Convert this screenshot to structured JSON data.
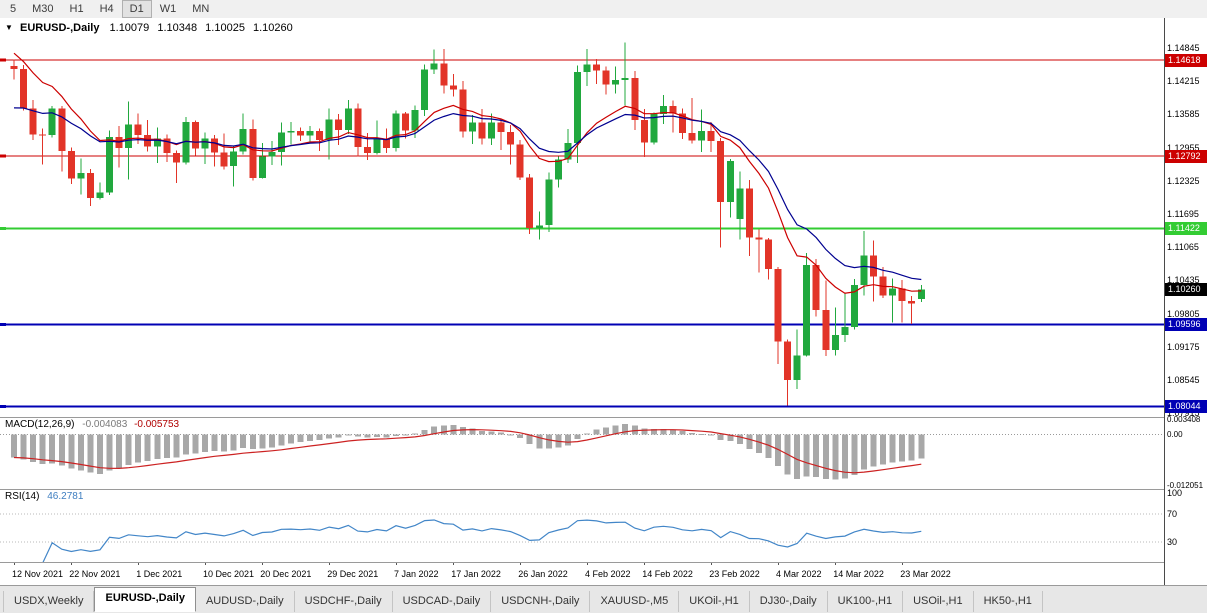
{
  "toolbar": {
    "timeframes": [
      "5",
      "M30",
      "H1",
      "H4",
      "D1",
      "W1",
      "MN"
    ],
    "active_timeframe": "D1"
  },
  "chart_header": {
    "menu_icon": "▼",
    "symbol_label": "EURUSD-,Daily",
    "open": "1.10079",
    "high": "1.10348",
    "low": "1.10025",
    "close": "1.10260"
  },
  "chart_data": {
    "type": "candlestick",
    "symbol": "EURUSD",
    "timeframe": "Daily",
    "colors": {
      "up": "#21a83e",
      "down": "#e23428",
      "macd_hist": "#a8a8a8",
      "macd_signal": "#cc2222",
      "rsi": "#4286c8"
    },
    "price_axis": {
      "gridmarks": [
        "1.14845",
        "1.14215",
        "1.13585",
        "1.12955",
        "1.12325",
        "1.11695",
        "1.11065",
        "1.10435",
        "1.09805",
        "1.09175",
        "1.08545",
        "1.07915"
      ],
      "badges": [
        {
          "price": 1.14618,
          "label": "1.14618",
          "color": "#cc0000"
        },
        {
          "price": 1.12792,
          "label": "1.12792",
          "color": "#cc0000"
        },
        {
          "price": 1.11422,
          "label": "1.11422",
          "color": "#33cc33"
        },
        {
          "price": 1.1026,
          "label": "1.10260",
          "color": "#000000"
        },
        {
          "price": 1.09596,
          "label": "1.09596",
          "color": "#0000b4"
        },
        {
          "price": 1.08044,
          "label": "1.08044",
          "color": "#0000b4"
        }
      ]
    },
    "hlines": [
      {
        "price": 1.14618,
        "color": "#cc0000",
        "width": 1
      },
      {
        "price": 1.12792,
        "color": "#cc0000",
        "width": 1
      },
      {
        "price": 1.11422,
        "color": "#33cc33",
        "width": 2
      },
      {
        "price": 1.09596,
        "color": "#0000b4",
        "width": 2
      },
      {
        "price": 1.08044,
        "color": "#0000b4",
        "width": 2
      }
    ],
    "moving_averages": [
      {
        "period": 12,
        "seed": 1.148,
        "color": "#cc0000"
      },
      {
        "period": 18,
        "seed": 1.1362,
        "color": "#000090"
      }
    ],
    "candles": {
      "o": [
        1.145,
        1.1445,
        1.137,
        1.132,
        1.1319,
        1.137,
        1.1289,
        1.1237,
        1.1247,
        1.12,
        1.121,
        1.1316,
        1.1295,
        1.1339,
        1.1319,
        1.1298,
        1.1313,
        1.1285,
        1.1267,
        1.1344,
        1.1294,
        1.1313,
        1.1286,
        1.126,
        1.1288,
        1.1331,
        1.1238,
        1.1279,
        1.1287,
        1.1324,
        1.1327,
        1.1318,
        1.1327,
        1.131,
        1.1349,
        1.1329,
        1.137,
        1.1297,
        1.1285,
        1.1313,
        1.1295,
        1.136,
        1.1328,
        1.1367,
        1.1444,
        1.1455,
        1.1413,
        1.1406,
        1.1326,
        1.1343,
        1.1313,
        1.1343,
        1.1325,
        1.1301,
        1.1239,
        1.1143,
        1.1148,
        1.1235,
        1.1273,
        1.1304,
        1.1439,
        1.1453,
        1.1442,
        1.1415,
        1.1424,
        1.1428,
        1.1348,
        1.1305,
        1.1359,
        1.1374,
        1.136,
        1.1323,
        1.1309,
        1.1327,
        1.1308,
        1.1192,
        1.116,
        1.1218,
        1.1125,
        1.1121,
        1.1065,
        1.0927,
        1.0854,
        1.0901,
        1.1073,
        1.0987,
        1.0911,
        1.094,
        1.0955,
        1.1035,
        1.1091,
        1.1051,
        1.1015,
        1.1028,
        1.1004,
        1.10079
      ],
      "h": [
        1.1463,
        1.1452,
        1.1386,
        1.1332,
        1.1374,
        1.1374,
        1.1296,
        1.1275,
        1.1255,
        1.1229,
        1.1328,
        1.1336,
        1.1383,
        1.136,
        1.1348,
        1.1334,
        1.132,
        1.129,
        1.1354,
        1.1347,
        1.1324,
        1.1319,
        1.1322,
        1.1298,
        1.136,
        1.1349,
        1.1304,
        1.1308,
        1.1343,
        1.1344,
        1.1334,
        1.1336,
        1.1332,
        1.137,
        1.1359,
        1.1386,
        1.1379,
        1.1323,
        1.1347,
        1.1332,
        1.1366,
        1.1363,
        1.1375,
        1.1453,
        1.1482,
        1.1483,
        1.1435,
        1.1422,
        1.1357,
        1.1369,
        1.136,
        1.1349,
        1.1338,
        1.131,
        1.1245,
        1.1174,
        1.1248,
        1.1279,
        1.1331,
        1.1451,
        1.1483,
        1.1464,
        1.1449,
        1.1449,
        1.1495,
        1.1441,
        1.1369,
        1.1362,
        1.1395,
        1.1385,
        1.137,
        1.139,
        1.1368,
        1.1344,
        1.1314,
        1.1274,
        1.125,
        1.1234,
        1.114,
        1.1124,
        1.1069,
        1.0931,
        1.095,
        1.1095,
        1.1084,
        1.1043,
        1.0992,
        1.102,
        1.1046,
        1.1137,
        1.1119,
        1.1069,
        1.1047,
        1.1044,
        1.1014,
        1.10348
      ],
      "l": [
        1.1425,
        1.1366,
        1.131,
        1.1263,
        1.1315,
        1.125,
        1.1226,
        1.1206,
        1.1185,
        1.1197,
        1.1205,
        1.1258,
        1.1235,
        1.1302,
        1.1288,
        1.1266,
        1.1268,
        1.1228,
        1.1263,
        1.128,
        1.1264,
        1.126,
        1.1254,
        1.1222,
        1.1282,
        1.1233,
        1.1237,
        1.1262,
        1.1261,
        1.1301,
        1.1308,
        1.1305,
        1.1289,
        1.1273,
        1.13,
        1.1321,
        1.1279,
        1.1272,
        1.1282,
        1.1285,
        1.1288,
        1.1313,
        1.1314,
        1.1355,
        1.1435,
        1.1398,
        1.1392,
        1.1315,
        1.1302,
        1.1301,
        1.13,
        1.1291,
        1.1263,
        1.1234,
        1.1131,
        1.1121,
        1.1135,
        1.122,
        1.1266,
        1.1266,
        1.1412,
        1.1416,
        1.1396,
        1.1398,
        1.1375,
        1.1329,
        1.1278,
        1.1301,
        1.134,
        1.1324,
        1.1312,
        1.1303,
        1.1287,
        1.1287,
        1.1106,
        1.1163,
        1.1121,
        1.109,
        1.1058,
        1.1045,
        1.0885,
        1.0806,
        1.0837,
        1.0899,
        1.0975,
        1.09,
        1.0901,
        1.0926,
        1.095,
        1.1015,
        1.1003,
        1.101,
        1.0963,
        1.0963,
        1.0961,
        1.10025
      ],
      "c": [
        1.1445,
        1.137,
        1.132,
        1.1319,
        1.137,
        1.1289,
        1.1237,
        1.1247,
        1.12,
        1.121,
        1.1316,
        1.1295,
        1.1339,
        1.1319,
        1.1298,
        1.1313,
        1.1285,
        1.1267,
        1.1344,
        1.1294,
        1.1313,
        1.1286,
        1.126,
        1.1288,
        1.1331,
        1.1238,
        1.1279,
        1.1287,
        1.1324,
        1.1327,
        1.1318,
        1.1327,
        1.131,
        1.1349,
        1.1329,
        1.137,
        1.1297,
        1.1285,
        1.1313,
        1.1295,
        1.136,
        1.1328,
        1.1367,
        1.1444,
        1.1455,
        1.1413,
        1.1406,
        1.1326,
        1.1343,
        1.1313,
        1.1343,
        1.1325,
        1.1301,
        1.1239,
        1.1143,
        1.1148,
        1.1235,
        1.1273,
        1.1304,
        1.1439,
        1.1453,
        1.1442,
        1.1415,
        1.1424,
        1.1428,
        1.1348,
        1.1305,
        1.1359,
        1.1374,
        1.136,
        1.1323,
        1.1309,
        1.1327,
        1.1308,
        1.1192,
        1.127,
        1.1218,
        1.1125,
        1.1121,
        1.1065,
        1.0927,
        1.0854,
        1.0901,
        1.1073,
        1.0987,
        1.0911,
        1.094,
        1.0955,
        1.1035,
        1.1091,
        1.1051,
        1.1015,
        1.1028,
        1.1004,
        1.0999,
        1.1026
      ]
    },
    "x_ticks": [
      {
        "label": "12 Nov 2021",
        "index": 0
      },
      {
        "label": "22 Nov 2021",
        "index": 6
      },
      {
        "label": "1 Dec 2021",
        "index": 13
      },
      {
        "label": "10 Dec 2021",
        "index": 20
      },
      {
        "label": "20 Dec 2021",
        "index": 26
      },
      {
        "label": "29 Dec 2021",
        "index": 33
      },
      {
        "label": "7 Jan 2022",
        "index": 40
      },
      {
        "label": "17 Jan 2022",
        "index": 46
      },
      {
        "label": "26 Jan 2022",
        "index": 53
      },
      {
        "label": "4 Feb 2022",
        "index": 60
      },
      {
        "label": "14 Feb 2022",
        "index": 66
      },
      {
        "label": "23 Feb 2022",
        "index": 73
      },
      {
        "label": "4 Mar 2022",
        "index": 80
      },
      {
        "label": "14 Mar 2022",
        "index": 86
      },
      {
        "label": "23 Mar 2022",
        "index": 93
      }
    ],
    "macd": {
      "label": "MACD(12,26,9)",
      "value_main": "-0.004083",
      "value_signal": "-0.005753",
      "axis": [
        "0.003408",
        "0.00",
        "-0.012051"
      ],
      "seed_fast": 1.148,
      "seed_slow": 1.1535
    },
    "rsi": {
      "label": "RSI(14)",
      "value": "46.2781",
      "axis": [
        "100",
        "70",
        "30"
      ],
      "levels": [
        70,
        30
      ]
    }
  },
  "tabs": [
    "USDX,Weekly",
    "EURUSD-,Daily",
    "AUDUSD-,Daily",
    "USDCHF-,Daily",
    "USDCAD-,Daily",
    "USDCNH-,Daily",
    "XAUUSD-,M5",
    "UKOil-,H1",
    "DJ30-,Daily",
    "UK100-,H1",
    "USOil-,H1",
    "HK50-,H1"
  ],
  "active_tab": "EURUSD-,Daily"
}
